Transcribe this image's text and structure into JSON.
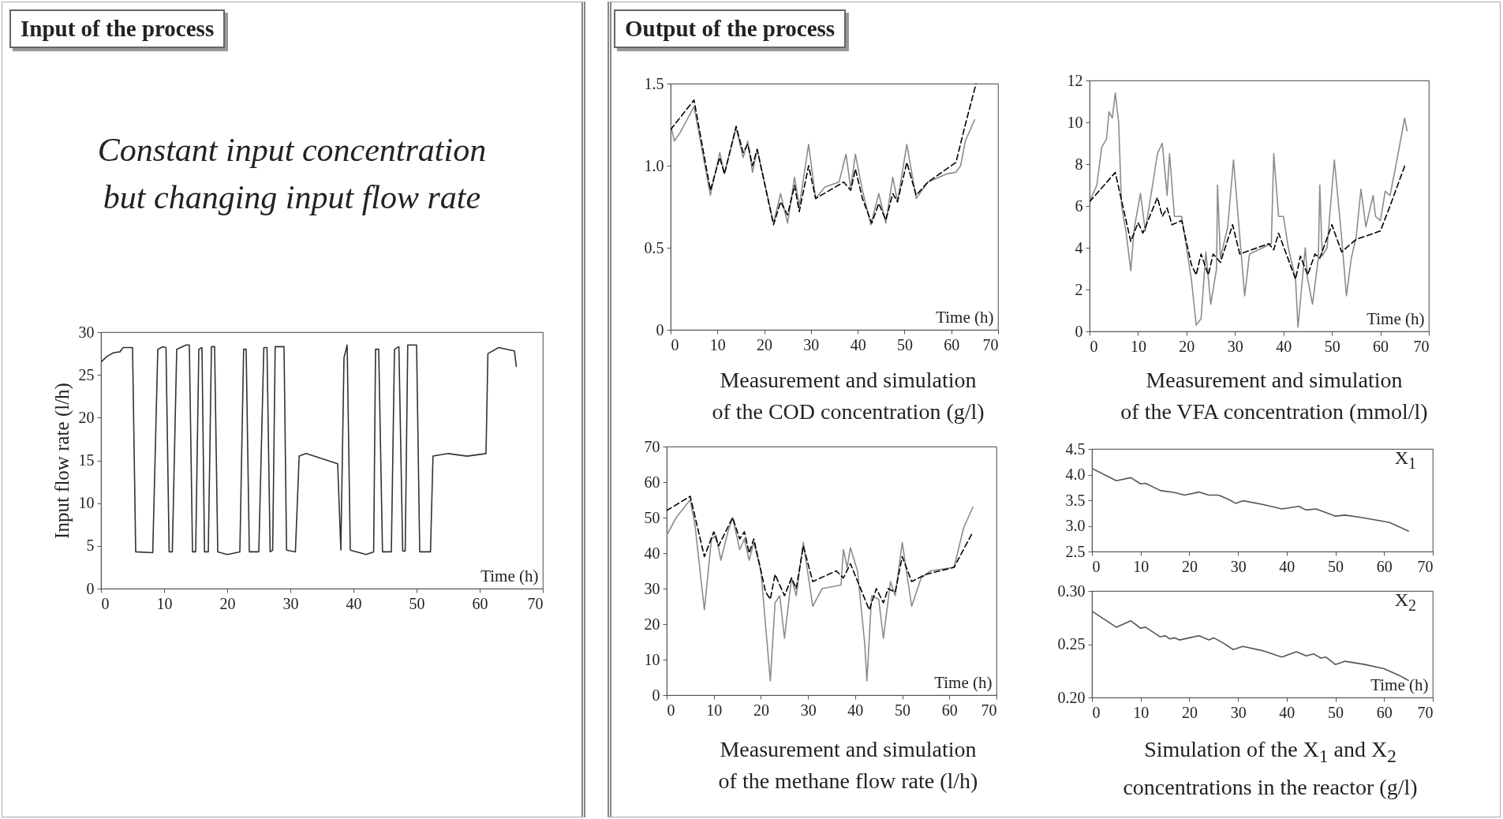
{
  "chart_data": [
    {
      "type": "line",
      "title": "Input of the process",
      "subtitle": "Constant input concentration\nbut changing input flow rate",
      "xlabel": "Time (h)",
      "ylabel": "Input flow rate (l/h)",
      "xlim": [
        0,
        70
      ],
      "xticks": [
        0,
        10,
        20,
        30,
        40,
        50,
        60,
        70
      ],
      "ylim": [
        0,
        30
      ],
      "yticks": [
        0,
        5,
        10,
        15,
        20,
        25,
        30
      ],
      "series": [
        {
          "color": "#333333",
          "x": [
            0,
            1,
            2,
            3,
            3.5,
            5,
            5.5,
            8.2,
            9,
            9.8,
            10.3,
            10.8,
            11.3,
            12,
            13.5,
            14,
            14.5,
            15,
            15.5,
            16,
            16.4,
            17,
            17.5,
            18,
            18.5,
            20,
            22,
            22.6,
            23,
            23.5,
            25,
            25.8,
            26.3,
            26.8,
            27.2,
            27.6,
            29,
            29.4,
            30.8,
            31.4,
            32.5,
            37.5,
            38,
            38.5,
            39,
            39.5,
            42,
            43.2,
            43.5,
            44,
            44.6,
            46,
            46.5,
            47.2,
            47.8,
            48.2,
            48.6,
            50,
            50.5,
            52.2,
            52.6,
            55,
            58,
            61,
            61.3,
            63,
            65.5,
            65.8
          ],
          "values": [
            26.5,
            27.2,
            27.6,
            27.7,
            28.2,
            28.2,
            4.3,
            4.2,
            28,
            28.3,
            28.2,
            4.3,
            4.3,
            28,
            28.5,
            28.5,
            4.3,
            4.3,
            28,
            28.2,
            4.3,
            4.3,
            28.3,
            28.3,
            4.3,
            4,
            4.3,
            28,
            28,
            4.3,
            4.3,
            28.2,
            28.2,
            4.3,
            4.5,
            28.3,
            28.3,
            4.5,
            4.3,
            15.5,
            15.8,
            14.6,
            4.5,
            27,
            28.5,
            4.5,
            4,
            4.3,
            28,
            28,
            4.3,
            4.3,
            28,
            28.3,
            4.4,
            4.4,
            28.5,
            28.5,
            4.3,
            4.3,
            15.5,
            15.8,
            15.5,
            15.8,
            27.5,
            28.2,
            27.8,
            26
          ]
        }
      ]
    },
    {
      "type": "line",
      "title": "Measurement and simulation\nof the COD concentration (g/l)",
      "annotations": [
        "Output of the process"
      ],
      "xlabel": "Time (h)",
      "xlim": [
        0,
        70
      ],
      "xticks": [
        0,
        10,
        20,
        30,
        40,
        50,
        60,
        70
      ],
      "ylim": [
        0,
        1.5
      ],
      "yticks": [
        0,
        0.5,
        {
          "value": 1,
          "label": "1.0"
        },
        1.5
      ],
      "series": [
        {
          "color": "#8c8c8c",
          "x": [
            0,
            0.8,
            2,
            5,
            8.5,
            10.5,
            11.5,
            14,
            15.5,
            16.5,
            17.5,
            18.5,
            22,
            23.5,
            25,
            26.5,
            27.5,
            29.5,
            31,
            33,
            36,
            37.5,
            38.5,
            39.5,
            41,
            42.8,
            44.5,
            46,
            47.5,
            48.5,
            50.5,
            52.5,
            55,
            59,
            61,
            62,
            63,
            65
          ],
          "values": [
            1.25,
            1.15,
            1.2,
            1.36,
            0.82,
            1.08,
            0.95,
            1.23,
            1.05,
            1.15,
            0.96,
            1.1,
            0.65,
            0.83,
            0.65,
            0.93,
            0.75,
            1.13,
            0.8,
            0.87,
            0.9,
            1.07,
            0.86,
            1.07,
            0.85,
            0.64,
            0.83,
            0.65,
            0.93,
            0.78,
            1.13,
            0.8,
            0.9,
            0.95,
            0.96,
            1,
            1.15,
            1.28
          ]
        },
        {
          "color": "#000000",
          "line_style": "dashed",
          "x": [
            0,
            5,
            8.5,
            10.5,
            11.5,
            14,
            15.5,
            16.5,
            17.5,
            18.5,
            22,
            23.5,
            25,
            26.5,
            27.5,
            29.5,
            31,
            37,
            38.5,
            39.5,
            41,
            43,
            44.5,
            46,
            47.5,
            48.5,
            50.5,
            52.5,
            55,
            61,
            63,
            65.3
          ],
          "values": [
            1.22,
            1.4,
            0.85,
            1.05,
            0.95,
            1.24,
            1.08,
            1.13,
            1,
            1.1,
            0.64,
            0.78,
            0.7,
            0.88,
            0.72,
            1,
            0.8,
            0.9,
            0.85,
            0.98,
            0.8,
            0.65,
            0.77,
            0.67,
            0.83,
            0.78,
            1.02,
            0.82,
            0.9,
            1.02,
            1.25,
            1.5
          ]
        }
      ]
    },
    {
      "type": "line",
      "title": "Measurement and simulation\nof the VFA concentration (mmol/l)",
      "xlabel": "Time (h)",
      "xlim": [
        0,
        70
      ],
      "xticks": [
        0,
        10,
        20,
        30,
        40,
        50,
        60,
        70
      ],
      "ylim": [
        0,
        12
      ],
      "yticks": [
        0,
        2,
        4,
        6,
        8,
        10,
        12
      ],
      "series": [
        {
          "color": "#8c8c8c",
          "x": [
            0,
            1.5,
            2.5,
            3.5,
            4,
            4.7,
            5.3,
            6,
            6.6,
            7.5,
            8.5,
            9.2,
            10.5,
            11.5,
            13,
            14,
            15,
            16,
            16.5,
            17.5,
            19,
            21,
            22,
            23,
            24,
            25,
            26.2,
            26.4,
            27,
            28.5,
            29.7,
            31,
            32,
            33,
            37.5,
            38,
            39,
            40,
            41,
            42.5,
            43,
            44.5,
            45,
            46,
            47.2,
            47.5,
            48,
            49,
            50.5,
            52,
            53,
            54,
            55,
            56,
            57,
            58.5,
            59,
            60,
            61,
            62,
            63.5,
            65,
            65.5
          ],
          "values": [
            6.2,
            7,
            8.8,
            9.2,
            10.5,
            10.2,
            11.4,
            10,
            6,
            4.8,
            2.9,
            4.9,
            6.6,
            4.8,
            7,
            8.5,
            9,
            6.5,
            8.5,
            5.5,
            5.5,
            2.5,
            0.3,
            0.6,
            3.8,
            1.3,
            3,
            7,
            3.5,
            5,
            8.2,
            4.5,
            1.7,
            3.7,
            4.2,
            8.5,
            5.5,
            5.5,
            4,
            2.5,
            0.2,
            4,
            2.5,
            1.3,
            3.5,
            7,
            3.6,
            4,
            8.2,
            4.5,
            1.7,
            3.5,
            4.5,
            6.8,
            5,
            6.5,
            5.5,
            5.3,
            6.7,
            6.5,
            8.3,
            10.2,
            9.6
          ]
        },
        {
          "color": "#000000",
          "line_style": "dashed",
          "x": [
            0,
            5.3,
            8.5,
            10,
            11,
            14,
            15,
            16,
            17,
            19,
            21,
            22,
            23,
            24.5,
            25.5,
            27,
            29.5,
            31,
            37,
            38,
            39,
            42.5,
            43.5,
            45,
            46.5,
            47.5,
            50,
            52,
            55,
            60,
            62,
            65
          ],
          "values": [
            6.2,
            7.6,
            4.3,
            5.2,
            4.7,
            6.4,
            5.5,
            5.9,
            5.1,
            5.3,
            3.2,
            2.7,
            3.7,
            2.7,
            3.7,
            3.3,
            5.1,
            3.7,
            4.2,
            3.9,
            4.7,
            2.5,
            3.6,
            2.7,
            3.7,
            3.5,
            5.1,
            3.8,
            4.4,
            4.8,
            6,
            7.9
          ]
        }
      ]
    },
    {
      "type": "line",
      "title": "Measurement and simulation\nof the methane flow rate (l/h)",
      "xlabel": "Time (h)",
      "xlim": [
        0,
        70
      ],
      "xticks": [
        0,
        10,
        20,
        30,
        40,
        50,
        60,
        70
      ],
      "ylim": [
        0,
        70
      ],
      "yticks": [
        0,
        10,
        20,
        30,
        40,
        50,
        60,
        70
      ],
      "series": [
        {
          "color": "#8c8c8c",
          "x": [
            0,
            2,
            5,
            6,
            8,
            9.5,
            10.5,
            11.5,
            13,
            14,
            15.5,
            16.5,
            17.5,
            18.5,
            20,
            22,
            23,
            24,
            25,
            26.5,
            27.5,
            29,
            31,
            33,
            37,
            37.5,
            38.3,
            39,
            40.5,
            42,
            42.5,
            43.5,
            45,
            46,
            47.5,
            48.5,
            50,
            52,
            54,
            56,
            61,
            63,
            65
          ],
          "values": [
            45,
            50,
            55,
            48,
            24,
            44,
            45,
            38,
            46,
            50,
            41,
            44,
            38,
            43,
            35,
            4,
            26,
            28,
            16,
            33,
            28,
            43,
            25,
            30,
            31,
            41,
            36,
            41.5,
            35,
            15,
            4,
            28,
            27,
            16,
            32,
            28,
            43,
            25,
            33,
            35,
            36,
            47,
            53
          ]
        },
        {
          "color": "#000000",
          "line_style": "dashed",
          "x": [
            0,
            5,
            8,
            10,
            11,
            14,
            15.5,
            16.5,
            17.5,
            18.5,
            21,
            22,
            23,
            25,
            26.5,
            27.5,
            29,
            31,
            36,
            37.5,
            39,
            43,
            44.5,
            46,
            47,
            48.5,
            50,
            52,
            55,
            61,
            65
          ],
          "values": [
            52,
            56,
            39,
            46,
            42,
            50,
            44,
            46,
            40,
            44,
            29,
            27,
            34,
            28,
            33,
            30,
            42,
            32,
            35,
            33,
            37,
            24,
            30,
            26,
            30,
            29,
            39,
            32,
            34,
            36,
            46
          ]
        }
      ]
    },
    {
      "type": "line",
      "annotations": [
        "X$_{1}$"
      ],
      "xlim": [
        0,
        70
      ],
      "xticks": [
        0,
        10,
        20,
        30,
        40,
        50,
        60,
        70
      ],
      "ylim": [
        2.5,
        4.5
      ],
      "yticks": [
        2.5,
        {
          "value": 3,
          "label": "3.0"
        },
        3.5,
        {
          "value": 4,
          "label": "4.0"
        },
        4.5
      ],
      "series": [
        {
          "color": "#555555",
          "x": [
            0,
            5,
            8,
            10,
            11,
            14,
            17,
            19,
            22,
            24,
            26,
            28,
            29.5,
            31,
            35,
            39,
            42.5,
            44,
            46,
            48,
            50,
            52,
            55,
            58,
            61,
            65
          ],
          "values": [
            4.12,
            3.88,
            3.94,
            3.82,
            3.83,
            3.69,
            3.65,
            3.6,
            3.66,
            3.6,
            3.6,
            3.52,
            3.44,
            3.49,
            3.42,
            3.33,
            3.38,
            3.31,
            3.33,
            3.26,
            3.19,
            3.21,
            3.17,
            3.12,
            3.07,
            2.9
          ]
        }
      ]
    },
    {
      "type": "line",
      "title": "Simulation of the X$_{1}$ and X$_{2}$\nconcentrations in the reactor (g/l)",
      "annotations": [
        "X$_{2}$"
      ],
      "xlabel": "Time (h)",
      "xlim": [
        0,
        70
      ],
      "xticks": [
        0,
        10,
        20,
        30,
        40,
        50,
        60,
        70
      ],
      "ylim": [
        0.2,
        0.3
      ],
      "yticks": [
        {
          "value": 0.2,
          "label": "0.20"
        },
        {
          "value": 0.25,
          "label": "0.25"
        },
        {
          "value": 0.3,
          "label": "0.30"
        }
      ],
      "series": [
        {
          "color": "#555555",
          "x": [
            0,
            5,
            8,
            10,
            11,
            14,
            15,
            16,
            17,
            18,
            20,
            22,
            24,
            25,
            27,
            29,
            31,
            35,
            39,
            42,
            44,
            45.5,
            47,
            48,
            50,
            52,
            56,
            60,
            63,
            65
          ],
          "values": [
            0.281,
            0.266,
            0.272,
            0.265,
            0.266,
            0.257,
            0.258,
            0.255,
            0.256,
            0.254,
            0.256,
            0.258,
            0.254,
            0.256,
            0.251,
            0.245,
            0.248,
            0.244,
            0.238,
            0.243,
            0.239,
            0.241,
            0.237,
            0.238,
            0.231,
            0.234,
            0.231,
            0.227,
            0.221,
            0.216
          ]
        }
      ]
    }
  ]
}
